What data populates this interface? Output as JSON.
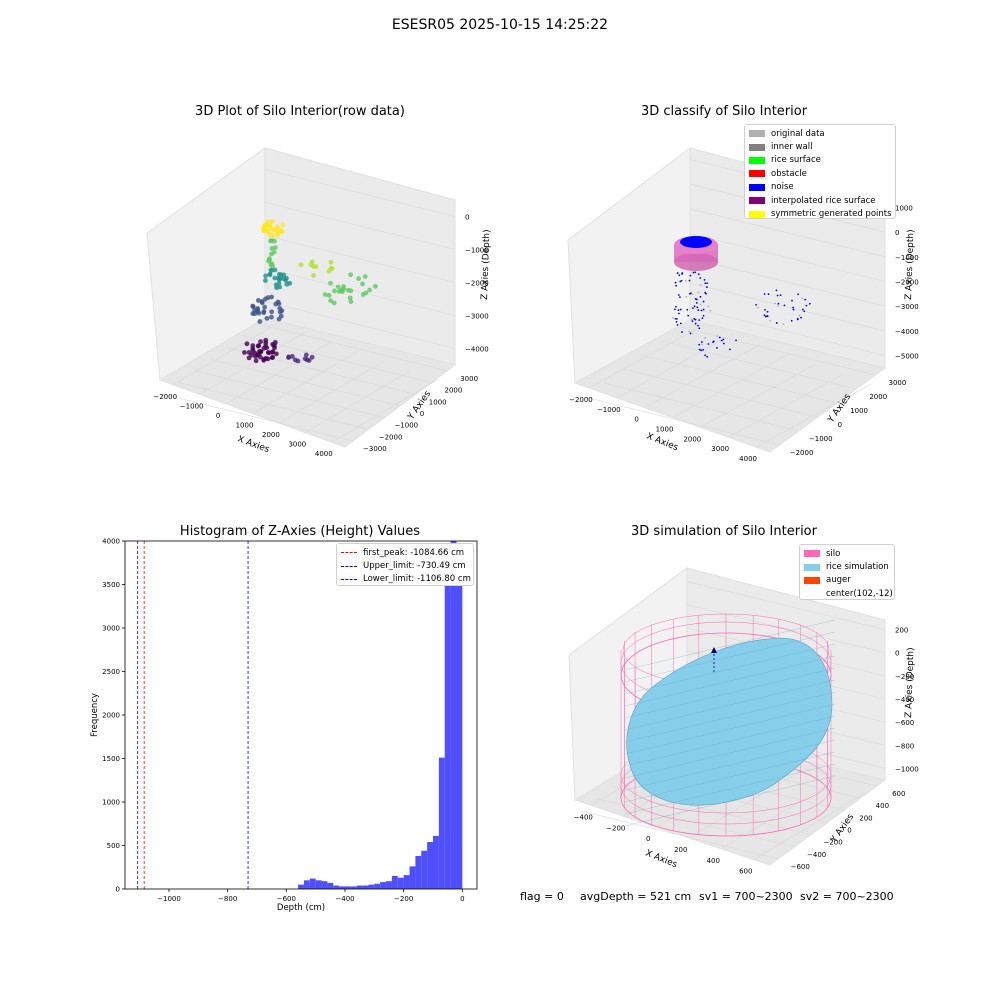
{
  "suptitle": "ESESR05 2025-10-15 14:25:22",
  "chart_data": [
    {
      "type": "scatter",
      "title": "3D Plot of Silo Interior(row data)",
      "xlabel": "X Axies",
      "ylabel": "Y Axies",
      "zlabel": "Z Axies (Depth)",
      "x_ticks": [
        "−2000",
        "−1000",
        "0",
        "1000",
        "2000",
        "3000",
        "4000"
      ],
      "y_ticks": [
        "−3000",
        "−2000",
        "−1000",
        "0",
        "1000",
        "2000",
        "3000"
      ],
      "z_ticks": [
        "0",
        "−1000",
        "−2000",
        "−3000",
        "−4000"
      ],
      "colormap": "viridis",
      "grid": true
    },
    {
      "type": "scatter",
      "title": "3D classify of Silo Interior",
      "xlabel": "X Axies",
      "ylabel": "Y Axies",
      "zlabel": "Z Axies (Depth)",
      "x_ticks": [
        "−2000",
        "−1000",
        "0",
        "1000",
        "2000",
        "3000",
        "4000"
      ],
      "y_ticks": [
        "−2000",
        "−1000",
        "0",
        "1000",
        "2000",
        "3000"
      ],
      "z_ticks": [
        "1000",
        "0",
        "−1000",
        "−2000",
        "−3000",
        "−4000",
        "−5000"
      ],
      "legend": [
        {
          "label": "original data",
          "color": "#b0b0b0"
        },
        {
          "label": "inner wall",
          "color": "#808080"
        },
        {
          "label": "rice surface",
          "color": "#00ff00"
        },
        {
          "label": "obstacle",
          "color": "#ff0000"
        },
        {
          "label": "noise",
          "color": "#0000ff"
        },
        {
          "label": "interpolated rice surface",
          "color": "#800080"
        },
        {
          "label": "symmetric generated points",
          "color": "#ffff00"
        }
      ],
      "legend_position": "top-right",
      "grid": true
    },
    {
      "type": "bar",
      "title": "Histogram of Z-Axies (Height) Values",
      "xlabel": "Depth (cm)",
      "ylabel": "Frequency",
      "xlim": [
        -1150,
        50
      ],
      "ylim": [
        0,
        4000
      ],
      "x_ticks": [
        {
          "value": -1000,
          "label": "−1000"
        },
        {
          "value": -800,
          "label": "−800"
        },
        {
          "value": -600,
          "label": "−600"
        },
        {
          "value": -400,
          "label": "−400"
        },
        {
          "value": -200,
          "label": "−200"
        },
        {
          "value": 0,
          "label": "0"
        }
      ],
      "y_ticks": [
        0,
        500,
        1000,
        1500,
        2000,
        2500,
        3000,
        3500,
        4000
      ],
      "bar_color": "#4f4fff",
      "bin_edges": [
        -560,
        -540,
        -520,
        -500,
        -480,
        -460,
        -440,
        -420,
        -400,
        -380,
        -360,
        -340,
        -320,
        -300,
        -280,
        -260,
        -240,
        -220,
        -200,
        -180,
        -160,
        -140,
        -120,
        -100,
        -80,
        -60,
        -40,
        -20,
        0
      ],
      "counts": [
        50,
        100,
        120,
        100,
        90,
        70,
        40,
        30,
        30,
        30,
        40,
        40,
        50,
        60,
        80,
        90,
        150,
        130,
        160,
        260,
        380,
        440,
        540,
        610,
        1510,
        3800,
        4000,
        3800
      ],
      "vlines": [
        {
          "label": "first_peak: -1084.66 cm",
          "value": -1084.66,
          "color": "#ff0000"
        },
        {
          "label": "Upper_limit: -730.49 cm",
          "value": -730.49,
          "color": "#0000ff"
        },
        {
          "label": "Lower_limit: -1106.80 cm",
          "value": -1106.8,
          "color": "#0000ff"
        }
      ],
      "legend_position": "top-right"
    },
    {
      "type": "surface",
      "title": "3D simulation of Silo Interior",
      "xlabel": "X Axies",
      "ylabel": "Y Axies",
      "zlabel": "Z Axies (Depth)",
      "x_ticks": [
        "−400",
        "−200",
        "0",
        "200",
        "400",
        "600"
      ],
      "y_ticks": [
        "−600",
        "−400",
        "−200",
        "0",
        "200",
        "400",
        "600"
      ],
      "z_ticks": [
        "200",
        "0",
        "−200",
        "−400",
        "−600",
        "−800",
        "−1000"
      ],
      "legend": [
        {
          "label": "silo",
          "color": "#ff69b4"
        },
        {
          "label": "rice simulation",
          "color": "#87ceeb"
        },
        {
          "label": "auger",
          "color": "#ff4500"
        },
        {
          "label": "center(102,-12)",
          "color": ""
        }
      ],
      "legend_position": "top-right",
      "grid": true
    }
  ],
  "status": {
    "flag": "flag = 0",
    "avg_depth": "avgDepth = 521 cm",
    "sv1": "sv1 = 700~2300",
    "sv2": "sv2 = 700~2300"
  }
}
